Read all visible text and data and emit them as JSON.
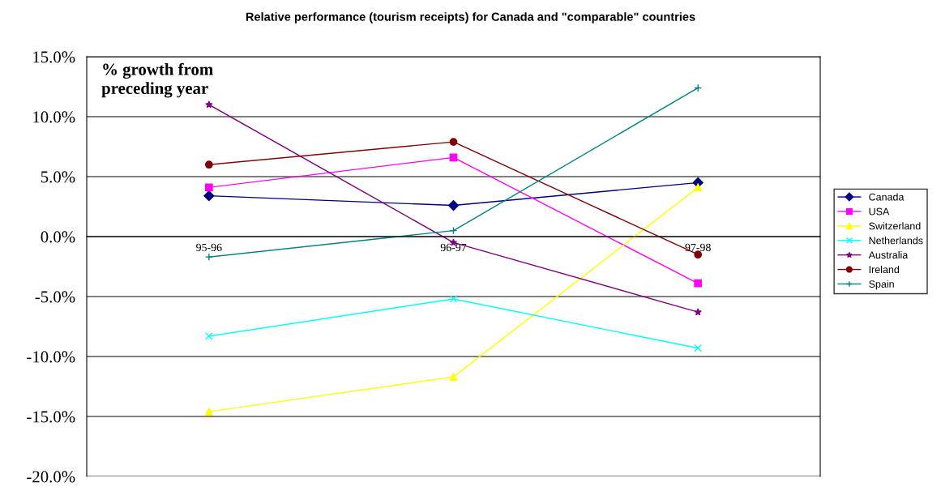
{
  "chart_data": {
    "type": "line",
    "title": "Relative performance (tourism receipts) for Canada and \"comparable\" countries",
    "annotations": [
      "% growth from\npreceding year"
    ],
    "categories": [
      "95-96",
      "96-97",
      "97-98"
    ],
    "series": [
      {
        "name": "Canada",
        "color": "#000080",
        "marker": "diamond",
        "values": [
          3.4,
          2.6,
          4.5
        ]
      },
      {
        "name": "USA",
        "color": "#ff00ff",
        "marker": "square",
        "values": [
          4.1,
          6.6,
          -3.9
        ]
      },
      {
        "name": "Switzerland",
        "color": "#ffff00",
        "marker": "triangle",
        "values": [
          -14.6,
          -11.7,
          4.1
        ]
      },
      {
        "name": "Netherlands",
        "color": "#00ffff",
        "marker": "cross",
        "values": [
          -8.3,
          -5.2,
          -9.3
        ]
      },
      {
        "name": "Australia",
        "color": "#800080",
        "marker": "star",
        "values": [
          11.0,
          -0.5,
          -6.3
        ]
      },
      {
        "name": "Ireland",
        "color": "#800000",
        "marker": "circle",
        "values": [
          6.0,
          7.9,
          -1.5
        ]
      },
      {
        "name": "Spain",
        "color": "#008080",
        "marker": "plus",
        "values": [
          -1.7,
          0.5,
          12.4
        ]
      }
    ],
    "ylim": [
      -20,
      15
    ],
    "yticks": [
      {
        "value": -20,
        "label": "-20.0%"
      },
      {
        "value": -15,
        "label": "-15.0%"
      },
      {
        "value": -10,
        "label": "-10.0%"
      },
      {
        "value": -5,
        "label": "-5.0%"
      },
      {
        "value": 0,
        "label": "0.0%"
      },
      {
        "value": 5,
        "label": "5.0%"
      },
      {
        "value": 10,
        "label": "10.0%"
      },
      {
        "value": 15,
        "label": "15.0%"
      }
    ],
    "grid": "y",
    "legend": "right",
    "line_style": "solid"
  }
}
